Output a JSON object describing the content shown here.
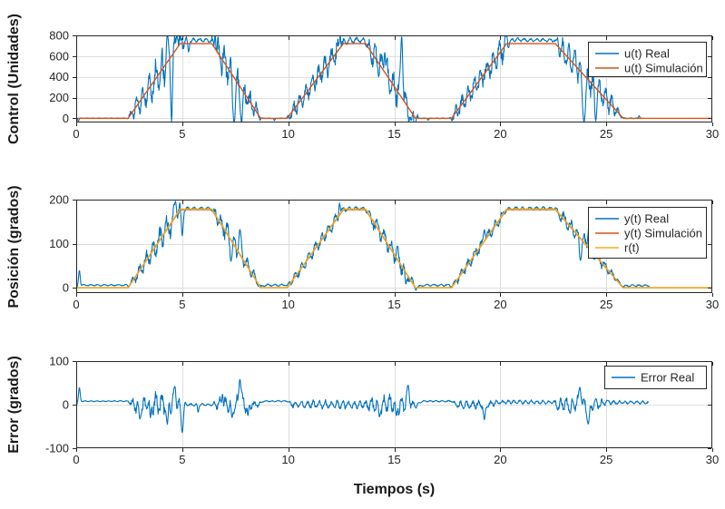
{
  "figure": {
    "xlabel": "Tiempos (s)",
    "background": "#ffffff"
  },
  "colors": {
    "blue": "#0072BD",
    "orange": "#D95319",
    "yellow": "#EDB120",
    "grid": "#DEDEDE",
    "axis": "#262626",
    "text": "#262626",
    "label": "#1a1a1a",
    "legend_border": "#262626",
    "legend_bg": "#ffffff"
  },
  "trapezoid_profile": [
    [
      0,
      0
    ],
    [
      2.45,
      0
    ],
    [
      4.9,
      1
    ],
    [
      6.4,
      1
    ],
    [
      8.7,
      0
    ],
    [
      9.95,
      0
    ],
    [
      12.6,
      1
    ],
    [
      13.65,
      1
    ],
    [
      16,
      0
    ],
    [
      17.7,
      0
    ],
    [
      20.3,
      1
    ],
    [
      22.6,
      1
    ],
    [
      25.8,
      0
    ],
    [
      30,
      0
    ]
  ],
  "chart_data": [
    {
      "type": "line",
      "name": "control",
      "ylabel": "Control (Unidades)",
      "xlim": [
        0,
        30
      ],
      "ylim": [
        -40,
        800
      ],
      "xticks": [
        0,
        5,
        10,
        15,
        20,
        25,
        30
      ],
      "yticks": [
        0,
        200,
        400,
        600,
        800
      ],
      "grid_x": [
        5,
        10,
        15,
        20,
        25
      ],
      "grid_y": [
        0,
        200,
        400,
        600
      ],
      "legend": [
        {
          "label": "u(t) Real",
          "color": "blue"
        },
        {
          "label": "u(t) Simulación",
          "color": "orange"
        }
      ],
      "series": [
        {
          "name": "u_real",
          "color": "blue",
          "kind": "noisy",
          "amplitude": 720,
          "t_end": 26.7,
          "freq": 3.4,
          "seed": 11,
          "width": 1.1,
          "amp_env": [
            [
              0,
              2
            ],
            [
              2.4,
              2
            ],
            [
              2.7,
              70
            ],
            [
              3.4,
              130
            ],
            [
              4.3,
              190
            ],
            [
              4.85,
              140
            ],
            [
              5.15,
              30
            ],
            [
              5.6,
              18
            ],
            [
              6.3,
              20
            ],
            [
              6.7,
              130
            ],
            [
              7.6,
              150
            ],
            [
              8.5,
              70
            ],
            [
              8.75,
              3
            ],
            [
              9.9,
              3
            ],
            [
              10.25,
              70
            ],
            [
              11.3,
              90
            ],
            [
              12.3,
              110
            ],
            [
              12.7,
              25
            ],
            [
              13.6,
              22
            ],
            [
              13.95,
              120
            ],
            [
              15.1,
              150
            ],
            [
              15.95,
              110
            ],
            [
              16.15,
              3
            ],
            [
              17.6,
              3
            ],
            [
              17.95,
              70
            ],
            [
              19,
              95
            ],
            [
              20.15,
              120
            ],
            [
              20.5,
              18
            ],
            [
              22.55,
              15
            ],
            [
              22.85,
              110
            ],
            [
              23.8,
              130
            ],
            [
              25.2,
              90
            ],
            [
              25.75,
              8
            ],
            [
              26,
              3
            ],
            [
              26.7,
              3
            ]
          ],
          "offset_env": [
            [
              0,
              2
            ],
            [
              2.4,
              2
            ],
            [
              2.6,
              0
            ],
            [
              4.95,
              0
            ],
            [
              5.15,
              35
            ],
            [
              6.3,
              35
            ],
            [
              6.5,
              0
            ],
            [
              8.75,
              1
            ],
            [
              9.9,
              1
            ],
            [
              10.1,
              0
            ],
            [
              12.65,
              0
            ],
            [
              12.85,
              32
            ],
            [
              13.55,
              32
            ],
            [
              13.75,
              0
            ],
            [
              16.1,
              1
            ],
            [
              17.6,
              1
            ],
            [
              17.8,
              0
            ],
            [
              20.35,
              0
            ],
            [
              20.55,
              35
            ],
            [
              22.5,
              35
            ],
            [
              22.7,
              0
            ],
            [
              25.8,
              1
            ],
            [
              26.7,
              1
            ]
          ],
          "spikes": [
            [
              0.03,
              0,
              0.03
            ],
            [
              0.1,
              -28,
              0.04
            ],
            [
              4.3,
              800,
              0.07
            ],
            [
              4.5,
              -30,
              0.05
            ],
            [
              4.75,
              795,
              0.09
            ],
            [
              5.3,
              640,
              0.05
            ],
            [
              6.55,
              800,
              0.05
            ],
            [
              7.45,
              -40,
              0.09
            ],
            [
              7.8,
              -45,
              0.07
            ],
            [
              9.35,
              -22,
              0.04
            ],
            [
              12.45,
              800,
              0.05
            ],
            [
              14.55,
              640,
              0.06
            ],
            [
              15.35,
              795,
              0.07
            ],
            [
              15.8,
              -20,
              0.08
            ],
            [
              16.6,
              -18,
              0.04
            ],
            [
              20.3,
              800,
              0.05
            ],
            [
              22.7,
              780,
              0.04
            ],
            [
              23.95,
              -35,
              0.1
            ],
            [
              24.5,
              -25,
              0.06
            ],
            [
              26.55,
              25,
              0.04
            ]
          ]
        },
        {
          "name": "u_sim",
          "color": "orange",
          "kind": "trapezoid",
          "amplitude": 720,
          "width": 1.4
        }
      ]
    },
    {
      "type": "line",
      "name": "posicion",
      "ylabel": "Posición (grados)",
      "xlim": [
        0,
        30
      ],
      "ylim": [
        -12,
        200
      ],
      "xticks": [
        0,
        5,
        10,
        15,
        20,
        25,
        30
      ],
      "yticks": [
        0,
        100,
        200
      ],
      "grid_x": [
        5,
        10,
        15,
        20,
        25
      ],
      "grid_y": [
        0,
        100
      ],
      "legend": [
        {
          "label": "y(t) Real",
          "color": "blue"
        },
        {
          "label": "y(t) Simulación",
          "color": "orange"
        },
        {
          "label": "r(t)",
          "color": "yellow"
        }
      ],
      "series": [
        {
          "name": "y_real",
          "color": "blue",
          "kind": "noisy",
          "amplitude": 178,
          "t_end": 27.05,
          "freq": 3.1,
          "seed": 23,
          "width": 1.1,
          "amp_env": [
            [
              0,
              1.5
            ],
            [
              2.4,
              1.5
            ],
            [
              2.8,
              12
            ],
            [
              3.6,
              20
            ],
            [
              4.5,
              26
            ],
            [
              4.9,
              16
            ],
            [
              5.2,
              3
            ],
            [
              6.35,
              3
            ],
            [
              6.7,
              16
            ],
            [
              7.6,
              24
            ],
            [
              8.5,
              10
            ],
            [
              8.75,
              2
            ],
            [
              9.9,
              2
            ],
            [
              10.3,
              9
            ],
            [
              11.4,
              12
            ],
            [
              12.4,
              13
            ],
            [
              12.75,
              3
            ],
            [
              13.6,
              3
            ],
            [
              13.95,
              14
            ],
            [
              15.1,
              20
            ],
            [
              15.95,
              10
            ],
            [
              16.2,
              2
            ],
            [
              17.6,
              2
            ],
            [
              18,
              9
            ],
            [
              19.2,
              12
            ],
            [
              20.1,
              10
            ],
            [
              20.5,
              3
            ],
            [
              22.55,
              3
            ],
            [
              22.9,
              13
            ],
            [
              23.9,
              16
            ],
            [
              25.2,
              9
            ],
            [
              25.7,
              2
            ],
            [
              27.05,
              2
            ]
          ],
          "offset_env": [
            [
              0,
              6
            ],
            [
              2.4,
              6
            ],
            [
              2.7,
              0
            ],
            [
              4.95,
              0
            ],
            [
              5.1,
              2
            ],
            [
              6.35,
              2
            ],
            [
              6.5,
              0
            ],
            [
              8.7,
              2
            ],
            [
              8.9,
              6
            ],
            [
              9.9,
              6
            ],
            [
              10.15,
              0
            ],
            [
              12.7,
              0
            ],
            [
              12.85,
              2
            ],
            [
              13.6,
              2
            ],
            [
              13.8,
              0
            ],
            [
              16.1,
              2
            ],
            [
              16.35,
              6
            ],
            [
              17.6,
              6
            ],
            [
              17.85,
              0
            ],
            [
              20.4,
              0
            ],
            [
              20.55,
              2
            ],
            [
              22.55,
              2
            ],
            [
              22.75,
              0
            ],
            [
              25.75,
              2
            ],
            [
              26,
              5
            ],
            [
              27.05,
              5
            ]
          ],
          "spikes": [
            [
              0.03,
              0,
              0.03
            ],
            [
              0.15,
              40,
              0.05
            ],
            [
              4.68,
              196,
              0.07
            ],
            [
              5,
              118,
              0.06
            ],
            [
              7.3,
              60,
              0.06
            ],
            [
              7.72,
              132,
              0.08
            ],
            [
              12.42,
              192,
              0.05
            ],
            [
              15.15,
              95,
              0.05
            ],
            [
              15.55,
              8,
              0.06
            ],
            [
              19.25,
              132,
              0.06
            ],
            [
              23.78,
              62,
              0.07
            ],
            [
              24.18,
              140,
              0.07
            ]
          ]
        },
        {
          "name": "y_sim",
          "color": "orange",
          "kind": "trapezoid",
          "amplitude": 177.5,
          "width": 1.6
        },
        {
          "name": "r",
          "color": "yellow",
          "kind": "trapezoid",
          "amplitude": 178.5,
          "width": 1.4
        }
      ]
    },
    {
      "type": "line",
      "name": "error",
      "ylabel": "Error (grados)",
      "xlim": [
        0,
        30
      ],
      "ylim": [
        -100,
        100
      ],
      "xticks": [
        0,
        5,
        10,
        15,
        20,
        25,
        30
      ],
      "yticks": [
        -100,
        0,
        100
      ],
      "grid_x": [
        5,
        10,
        15,
        20,
        25
      ],
      "grid_y": [
        0
      ],
      "legend": [
        {
          "label": "Error Real",
          "color": "blue"
        }
      ],
      "series": [
        {
          "name": "error_real",
          "color": "blue",
          "kind": "noisy",
          "amplitude": 0,
          "t_end": 27,
          "freq": 3.6,
          "seed": 37,
          "width": 1.1,
          "amp_env": [
            [
              0,
              1
            ],
            [
              2.45,
              1
            ],
            [
              2.8,
              16
            ],
            [
              3.6,
              24
            ],
            [
              4.5,
              26
            ],
            [
              5.05,
              8
            ],
            [
              5.25,
              2.5
            ],
            [
              6.4,
              2.5
            ],
            [
              6.75,
              16
            ],
            [
              7.9,
              18
            ],
            [
              8.6,
              5
            ],
            [
              8.8,
              1.5
            ],
            [
              9.95,
              1.5
            ],
            [
              10.3,
              7
            ],
            [
              11.4,
              9
            ],
            [
              12.5,
              9
            ],
            [
              13.6,
              7
            ],
            [
              13.95,
              16
            ],
            [
              15.2,
              20
            ],
            [
              16.05,
              7
            ],
            [
              16.25,
              1.5
            ],
            [
              17.7,
              1.5
            ],
            [
              18.05,
              7
            ],
            [
              19.4,
              9
            ],
            [
              19.9,
              4
            ],
            [
              22.5,
              4
            ],
            [
              22.8,
              13
            ],
            [
              24.3,
              16
            ],
            [
              24.9,
              7
            ],
            [
              25.3,
              4
            ],
            [
              27,
              3
            ]
          ],
          "offset_env": [
            [
              0,
              8
            ],
            [
              2.45,
              8
            ],
            [
              2.7,
              0
            ],
            [
              8.55,
              0
            ],
            [
              8.85,
              8
            ],
            [
              9.95,
              8
            ],
            [
              10.2,
              0
            ],
            [
              16.05,
              0
            ],
            [
              16.35,
              8
            ],
            [
              17.7,
              8
            ],
            [
              17.95,
              0
            ],
            [
              19.5,
              0
            ],
            [
              19.9,
              6
            ],
            [
              22.5,
              6
            ],
            [
              22.7,
              0
            ],
            [
              24.6,
              0
            ],
            [
              25,
              5
            ],
            [
              27,
              5
            ]
          ],
          "spikes": [
            [
              0.03,
              0,
              0.03
            ],
            [
              0.15,
              40,
              0.05
            ],
            [
              3,
              -33,
              0.06
            ],
            [
              3.5,
              -30,
              0.05
            ],
            [
              4.3,
              -45,
              0.06
            ],
            [
              4.65,
              42,
              0.07
            ],
            [
              5,
              -64,
              0.07
            ],
            [
              5.75,
              -18,
              0.04
            ],
            [
              6.9,
              24,
              0.05
            ],
            [
              7.35,
              -30,
              0.06
            ],
            [
              7.72,
              58,
              0.08
            ],
            [
              8.1,
              -25,
              0.05
            ],
            [
              14.3,
              -28,
              0.06
            ],
            [
              15.1,
              -25,
              0.06
            ],
            [
              15.65,
              45,
              0.08
            ],
            [
              19.25,
              -35,
              0.06
            ],
            [
              23.3,
              -20,
              0.05
            ],
            [
              23.75,
              40,
              0.08
            ],
            [
              24.15,
              -45,
              0.08
            ]
          ]
        }
      ]
    }
  ]
}
